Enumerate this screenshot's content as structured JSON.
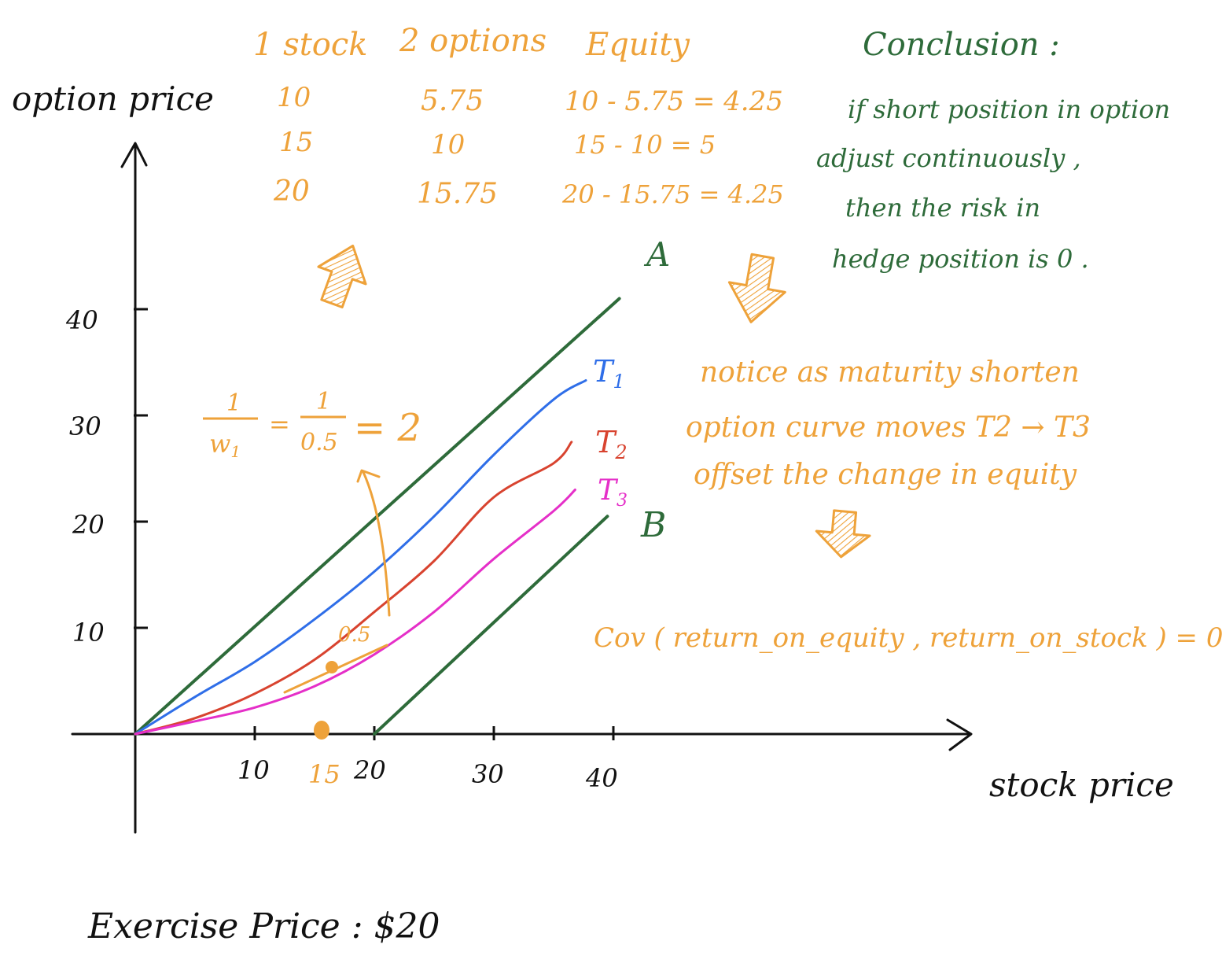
{
  "colors": {
    "ink": "#111111",
    "orange": "#eea23a",
    "green": "#2e6b3a",
    "blue": "#2f6ee8",
    "red": "#d8432f",
    "magenta": "#e52fc8"
  },
  "axes": {
    "y_label": "option price",
    "x_label": "stock price",
    "x_ticks": [
      "10",
      "20",
      "30",
      "40"
    ],
    "x_highlight_tick": "15",
    "y_ticks": [
      "10",
      "20",
      "30",
      "40"
    ]
  },
  "table": {
    "headers": [
      "1 stock",
      "2 options",
      "Equity"
    ],
    "rows": [
      [
        "10",
        "5.75",
        "10 - 5.75 = 4.25"
      ],
      [
        "15",
        "10",
        "15 - 10 = 5"
      ],
      [
        "20",
        "15.75",
        "20 - 15.75 = 4.25"
      ]
    ]
  },
  "labels": {
    "line_a": "A",
    "line_b": "B",
    "t1": "T",
    "t1_sub": "1",
    "t2": "T",
    "t2_sub": "2",
    "t3": "T",
    "t3_sub": "3",
    "slope_value": "0.5",
    "ratio_num_1": "1",
    "ratio_den_1": "w",
    "ratio_den_1_sub": "1",
    "ratio_eq_1": "=",
    "ratio_num_2": "1",
    "ratio_den_2": "0.5",
    "ratio_result": "= 2"
  },
  "notes": {
    "conclusion_title": "Conclusion :",
    "conclusion_lines": [
      "if short position in option",
      "adjust continuously ,",
      "then the risk in",
      "hedge position is 0 ."
    ],
    "maturity_lines": [
      "notice as maturity shorten",
      "option curve moves T2 → T3",
      "offset the change in equity"
    ],
    "covariance": "Cov ( return_on_equity , return_on_stock ) = 0",
    "exercise_price": "Exercise Price : $20"
  },
  "chart_data": {
    "type": "line",
    "xlabel": "stock price",
    "ylabel": "option price",
    "xlim": [
      0,
      47
    ],
    "ylim": [
      0,
      48
    ],
    "series": [
      {
        "name": "A",
        "color": "#2e6b3a",
        "x": [
          0,
          40.5
        ],
        "y": [
          0,
          41
        ]
      },
      {
        "name": "B",
        "color": "#2e6b3a",
        "x": [
          20,
          39.5
        ],
        "y": [
          0,
          20.5
        ]
      },
      {
        "name": "T1",
        "color": "#2f6ee8",
        "x": [
          0,
          5,
          10,
          15,
          20,
          25,
          30,
          35,
          37.7
        ],
        "y": [
          0,
          3.5,
          6.8,
          10.8,
          15.3,
          20.5,
          26.3,
          31.5,
          33.3
        ]
      },
      {
        "name": "T2",
        "color": "#d8432f",
        "x": [
          0,
          5,
          10,
          15,
          20,
          25,
          30,
          35,
          36.5
        ],
        "y": [
          0,
          1.5,
          3.8,
          7,
          11.5,
          16.3,
          22.3,
          25.5,
          27.5
        ]
      },
      {
        "name": "T3",
        "color": "#e52fc8",
        "x": [
          0,
          5,
          10,
          15,
          20,
          25,
          30,
          35,
          36.8
        ],
        "y": [
          0,
          1.2,
          2.5,
          4.5,
          7.5,
          11.5,
          16.5,
          21,
          23
        ]
      }
    ],
    "points": [
      {
        "label": "15",
        "x": 15,
        "y": 0
      },
      {
        "label": "tangent-point",
        "x": 15.5,
        "y": 6.2
      }
    ]
  }
}
